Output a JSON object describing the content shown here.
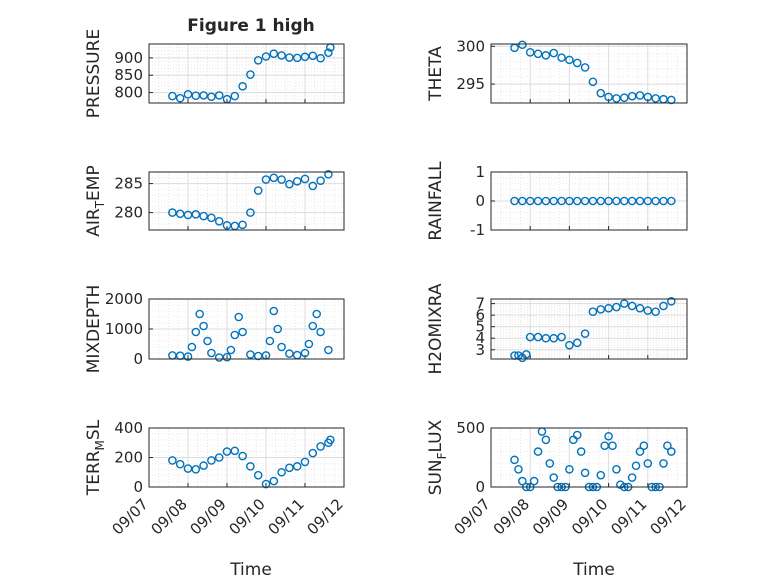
{
  "figure": {
    "title": "Figure 1 high",
    "xlabel": "Time",
    "x_ticks": [
      "09/07",
      "09/08",
      "09/09",
      "09/10",
      "09/11",
      "09/12"
    ],
    "marker_color": "#0072BD"
  },
  "chart_data": [
    {
      "type": "scatter",
      "name": "PRESSURE",
      "ylabel_main": "PRESSURE",
      "ylabel_sub": "",
      "ylabel_tail": "",
      "xlim": [
        0,
        5
      ],
      "ylim": [
        770,
        940
      ],
      "yticks": [
        800,
        850,
        900
      ],
      "x": [
        0.6,
        0.8,
        1.0,
        1.2,
        1.4,
        1.6,
        1.8,
        2.0,
        2.2,
        2.4,
        2.6,
        2.8,
        3.0,
        3.2,
        3.4,
        3.6,
        3.8,
        4.0,
        4.2,
        4.4,
        4.6,
        4.65
      ],
      "y": [
        790,
        784,
        795,
        791,
        792,
        788,
        792,
        781,
        790,
        818,
        852,
        893,
        904,
        912,
        907,
        901,
        900,
        903,
        906,
        899,
        915,
        930
      ]
    },
    {
      "type": "scatter",
      "name": "THETA",
      "ylabel_main": "THETA",
      "ylabel_sub": "",
      "ylabel_tail": "",
      "xlim": [
        0,
        5
      ],
      "ylim": [
        292.5,
        300.3
      ],
      "yticks": [
        295,
        300
      ],
      "x": [
        0.6,
        0.8,
        1.0,
        1.2,
        1.4,
        1.6,
        1.8,
        2.0,
        2.2,
        2.4,
        2.6,
        2.8,
        3.0,
        3.2,
        3.4,
        3.6,
        3.8,
        4.0,
        4.2,
        4.4,
        4.6
      ],
      "y": [
        299.8,
        300.2,
        299.2,
        299.0,
        298.8,
        299.1,
        298.5,
        298.2,
        297.8,
        297.2,
        295.3,
        293.8,
        293.3,
        293.1,
        293.2,
        293.4,
        293.5,
        293.3,
        293.1,
        293.0,
        292.9
      ]
    },
    {
      "type": "scatter",
      "name": "AIR_TEMP",
      "ylabel_main": "AIR",
      "ylabel_sub": "T",
      "ylabel_tail": "EMP",
      "xlim": [
        0,
        5
      ],
      "ylim": [
        277,
        287
      ],
      "yticks": [
        280,
        285
      ],
      "x": [
        0.6,
        0.8,
        1.0,
        1.2,
        1.4,
        1.6,
        1.8,
        2.0,
        2.2,
        2.4,
        2.6,
        2.8,
        3.0,
        3.2,
        3.4,
        3.6,
        3.8,
        4.0,
        4.2,
        4.4,
        4.6
      ],
      "y": [
        280.0,
        279.8,
        279.6,
        279.7,
        279.4,
        279.1,
        278.5,
        277.8,
        277.7,
        277.9,
        280.0,
        283.8,
        285.7,
        286.0,
        285.7,
        284.9,
        285.4,
        285.8,
        284.6,
        285.5,
        286.6
      ]
    },
    {
      "type": "scatter",
      "name": "RAINFALL",
      "ylabel_main": "RAINFALL",
      "ylabel_sub": "",
      "ylabel_tail": "",
      "xlim": [
        0,
        5
      ],
      "ylim": [
        -1,
        1
      ],
      "yticks": [
        -1,
        0,
        1
      ],
      "x": [
        0.6,
        0.8,
        1.0,
        1.2,
        1.4,
        1.6,
        1.8,
        2.0,
        2.2,
        2.4,
        2.6,
        2.8,
        3.0,
        3.2,
        3.4,
        3.6,
        3.8,
        4.0,
        4.2,
        4.4,
        4.6
      ],
      "y": [
        0,
        0,
        0,
        0,
        0,
        0,
        0,
        0,
        0,
        0,
        0,
        0,
        0,
        0,
        0,
        0,
        0,
        0,
        0,
        0,
        0
      ]
    },
    {
      "type": "scatter",
      "name": "MIXDEPTH",
      "ylabel_main": "MIXDEPTH",
      "ylabel_sub": "",
      "ylabel_tail": "",
      "xlim": [
        0,
        5
      ],
      "ylim": [
        0,
        2000
      ],
      "yticks": [
        0,
        1000,
        2000
      ],
      "x": [
        0.6,
        0.8,
        1.0,
        1.1,
        1.2,
        1.3,
        1.4,
        1.5,
        1.6,
        1.8,
        2.0,
        2.1,
        2.2,
        2.3,
        2.4,
        2.6,
        2.8,
        3.0,
        3.1,
        3.2,
        3.3,
        3.4,
        3.6,
        3.8,
        4.0,
        4.1,
        4.2,
        4.3,
        4.4,
        4.6
      ],
      "y": [
        120,
        110,
        80,
        400,
        900,
        1500,
        1100,
        600,
        200,
        50,
        60,
        300,
        800,
        1400,
        900,
        150,
        100,
        120,
        600,
        1600,
        1000,
        400,
        180,
        130,
        200,
        500,
        1100,
        1500,
        900,
        300
      ]
    },
    {
      "type": "scatter",
      "name": "H2OMIXRA",
      "ylabel_main": "H2OMIXRA",
      "ylabel_sub": "",
      "ylabel_tail": "",
      "xlim": [
        0,
        5
      ],
      "ylim": [
        2.2,
        7.4
      ],
      "yticks": [
        3,
        4,
        5,
        6,
        7
      ],
      "x": [
        0.6,
        0.7,
        0.8,
        0.9,
        1.0,
        1.2,
        1.4,
        1.6,
        1.8,
        2.0,
        2.2,
        2.4,
        2.6,
        2.8,
        3.0,
        3.2,
        3.4,
        3.6,
        3.8,
        4.0,
        4.2,
        4.4,
        4.6
      ],
      "y": [
        2.5,
        2.5,
        2.3,
        2.6,
        4.1,
        4.1,
        4.0,
        4.0,
        4.1,
        3.4,
        3.6,
        4.4,
        6.3,
        6.5,
        6.6,
        6.7,
        7.0,
        6.8,
        6.6,
        6.4,
        6.3,
        6.8,
        7.2
      ]
    },
    {
      "type": "scatter",
      "name": "TERR_MSL",
      "ylabel_main": "TERR",
      "ylabel_sub": "M",
      "ylabel_tail": "SL",
      "xlim": [
        0,
        5
      ],
      "ylim": [
        0,
        400
      ],
      "yticks": [
        0,
        200,
        400
      ],
      "x": [
        0.6,
        0.8,
        1.0,
        1.2,
        1.4,
        1.6,
        1.8,
        2.0,
        2.2,
        2.4,
        2.6,
        2.8,
        3.0,
        3.2,
        3.4,
        3.6,
        3.8,
        4.0,
        4.2,
        4.4,
        4.6,
        4.65
      ],
      "y": [
        180,
        155,
        125,
        120,
        145,
        180,
        200,
        240,
        245,
        210,
        140,
        80,
        20,
        40,
        100,
        130,
        140,
        170,
        230,
        275,
        300,
        320
      ]
    },
    {
      "type": "scatter",
      "name": "SUN_FLUX",
      "ylabel_main": "SUN",
      "ylabel_sub": "F",
      "ylabel_tail": "LUX",
      "xlim": [
        0,
        5
      ],
      "ylim": [
        0,
        500
      ],
      "yticks": [
        0,
        500
      ],
      "x": [
        0.6,
        0.7,
        0.8,
        0.9,
        1.0,
        1.1,
        1.2,
        1.3,
        1.4,
        1.5,
        1.6,
        1.7,
        1.8,
        1.9,
        2.0,
        2.1,
        2.2,
        2.3,
        2.4,
        2.5,
        2.6,
        2.7,
        2.8,
        2.9,
        3.0,
        3.1,
        3.2,
        3.3,
        3.4,
        3.5,
        3.6,
        3.7,
        3.8,
        3.9,
        4.0,
        4.1,
        4.2,
        4.3,
        4.4,
        4.5,
        4.6
      ],
      "y": [
        230,
        150,
        50,
        0,
        0,
        50,
        300,
        470,
        400,
        200,
        80,
        0,
        0,
        0,
        150,
        400,
        440,
        300,
        120,
        0,
        0,
        0,
        100,
        350,
        430,
        350,
        150,
        20,
        0,
        0,
        80,
        180,
        300,
        350,
        200,
        0,
        0,
        0,
        200,
        350,
        300
      ]
    }
  ]
}
